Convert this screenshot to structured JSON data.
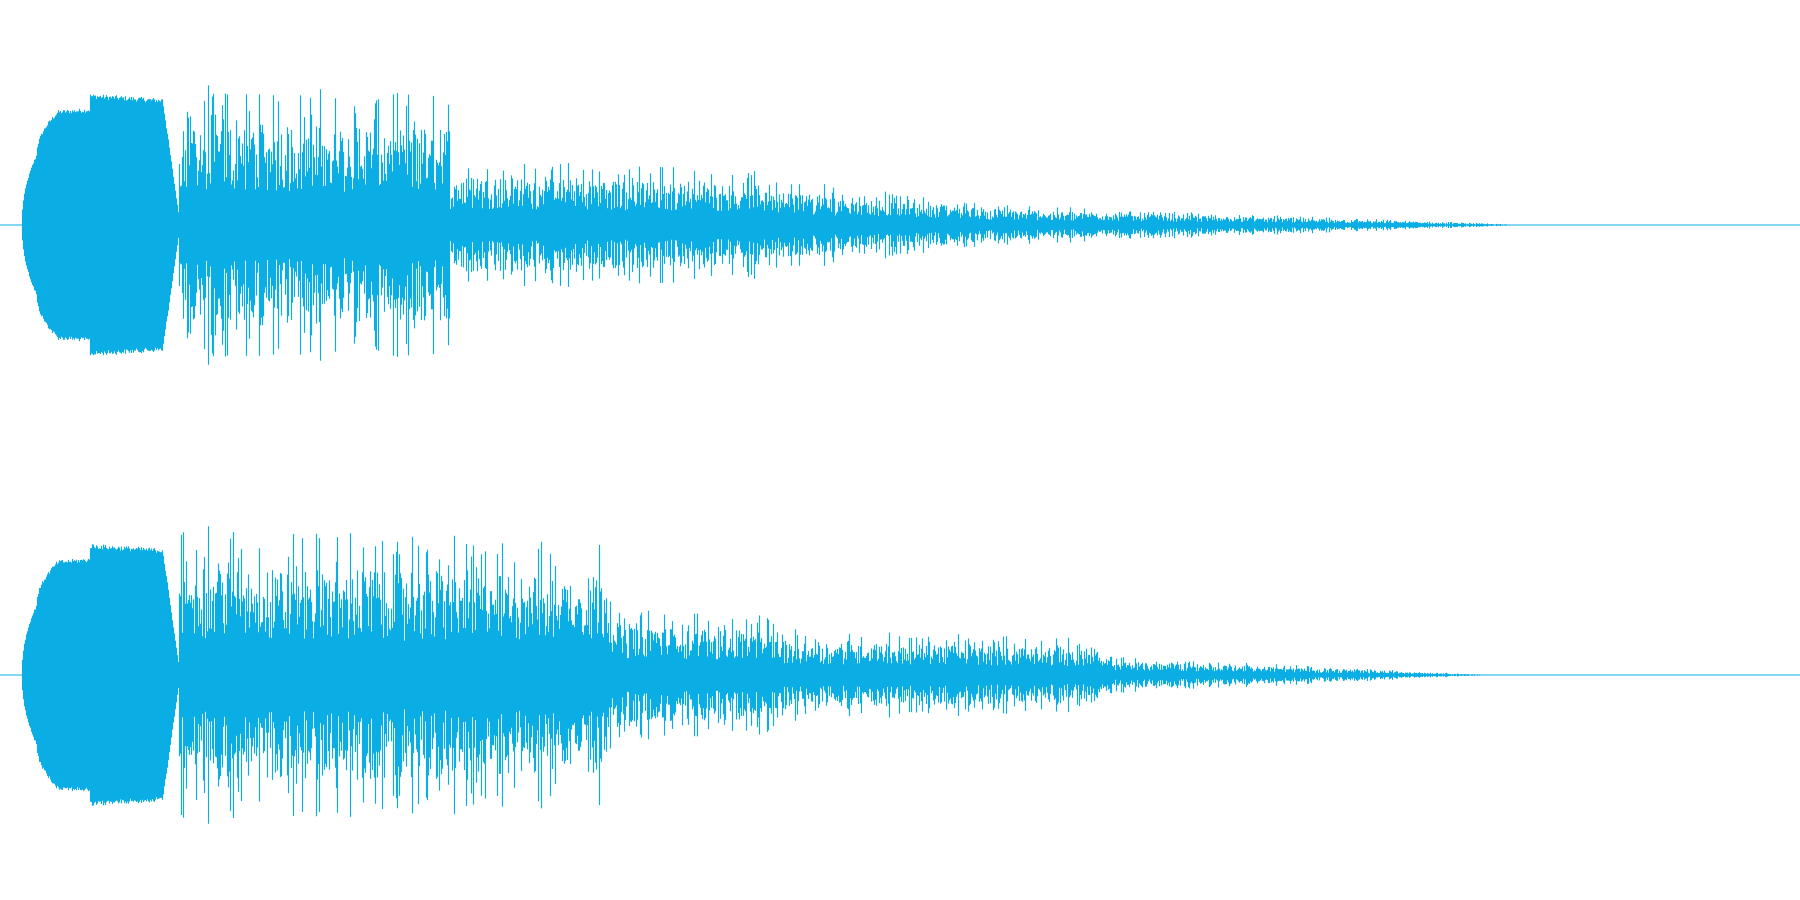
{
  "waveform": {
    "color": "#0aade4",
    "background": "#ffffff",
    "channels": [
      {
        "name": "",
        "segments": [
          {
            "t0": 0.012,
            "t1": 0.02,
            "a0": 0.04,
            "a1": 0.6,
            "shape": "attack"
          },
          {
            "t0": 0.02,
            "t1": 0.032,
            "a0": 0.6,
            "a1": 0.98,
            "shape": "attack"
          },
          {
            "t0": 0.032,
            "t1": 0.05,
            "a0": 0.98,
            "a1": 1.0,
            "shape": "solid"
          },
          {
            "t0": 0.05,
            "t1": 0.09,
            "a0": 1.12,
            "a1": 1.08,
            "shape": "solid"
          },
          {
            "t0": 0.09,
            "t1": 0.099,
            "a0": 1.1,
            "a1": 0.1,
            "shape": "solid"
          },
          {
            "t0": 0.099,
            "t1": 0.25,
            "a0": 0.85,
            "a1": 0.8,
            "shape": "spiky"
          },
          {
            "t0": 0.25,
            "t1": 0.36,
            "a0": 0.4,
            "a1": 0.36,
            "shape": "spiky"
          },
          {
            "t0": 0.36,
            "t1": 0.43,
            "a0": 0.36,
            "a1": 0.32,
            "shape": "spiky"
          },
          {
            "t0": 0.43,
            "t1": 0.56,
            "a0": 0.28,
            "a1": 0.12,
            "shape": "spiky"
          },
          {
            "t0": 0.56,
            "t1": 0.85,
            "a0": 0.12,
            "a1": 0.0,
            "shape": "spiky"
          }
        ]
      },
      {
        "name": "",
        "segments": [
          {
            "t0": 0.012,
            "t1": 0.02,
            "a0": 0.04,
            "a1": 0.6,
            "shape": "attack"
          },
          {
            "t0": 0.02,
            "t1": 0.032,
            "a0": 0.6,
            "a1": 0.98,
            "shape": "attack"
          },
          {
            "t0": 0.032,
            "t1": 0.05,
            "a0": 0.98,
            "a1": 1.0,
            "shape": "solid"
          },
          {
            "t0": 0.05,
            "t1": 0.09,
            "a0": 1.12,
            "a1": 1.08,
            "shape": "solid"
          },
          {
            "t0": 0.09,
            "t1": 0.099,
            "a0": 1.1,
            "a1": 0.1,
            "shape": "solid"
          },
          {
            "t0": 0.099,
            "t1": 0.34,
            "a0": 0.9,
            "a1": 0.8,
            "shape": "spiky"
          },
          {
            "t0": 0.34,
            "t1": 0.43,
            "a0": 0.4,
            "a1": 0.36,
            "shape": "spiky"
          },
          {
            "t0": 0.43,
            "t1": 0.61,
            "a0": 0.28,
            "a1": 0.22,
            "shape": "spiky"
          },
          {
            "t0": 0.61,
            "t1": 0.83,
            "a0": 0.12,
            "a1": 0.0,
            "shape": "spiky"
          }
        ]
      }
    ]
  }
}
